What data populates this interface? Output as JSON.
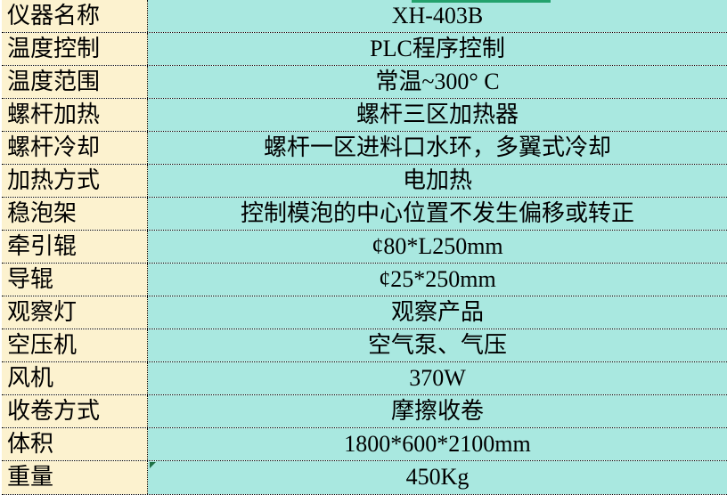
{
  "table": {
    "rows": [
      {
        "label": "仪器名称",
        "value": "XH-403B"
      },
      {
        "label": "温度控制",
        "value": "PLC程序控制"
      },
      {
        "label": "温度范围",
        "value": "常温~300° C"
      },
      {
        "label": "螺杆加热",
        "value": "螺杆三区加热器"
      },
      {
        "label": "螺杆冷却",
        "value": "螺杆一区进料口水环，多翼式冷却"
      },
      {
        "label": "加热方式",
        "value": "电加热"
      },
      {
        "label": "稳泡架",
        "value": "控制模泡的中心位置不发生偏移或转正"
      },
      {
        "label": "牵引辊",
        "value": "¢80*L250mm"
      },
      {
        "label": "导辊",
        "value": "¢25*250mm"
      },
      {
        "label": "观察灯",
        "value": "观察产品"
      },
      {
        "label": "空压机",
        "value": "空气泵、气压"
      },
      {
        "label": "风机",
        "value": "370W"
      },
      {
        "label": "收卷方式",
        "value": "摩擦收卷"
      },
      {
        "label": "体积",
        "value": "1800*600*2100mm"
      },
      {
        "label": "重量",
        "value": "450Kg"
      }
    ]
  },
  "indicators": {
    "green_top_bar": "selection-remnant-bar",
    "error_triangle": "cell-error-indicator"
  },
  "colors": {
    "label_bg": "#FCF2CF",
    "value_bg": "#A9E8E0",
    "grid": "#000000",
    "text": "#000000",
    "green_bar": "#23A26D",
    "triangle": "#1E7145"
  }
}
